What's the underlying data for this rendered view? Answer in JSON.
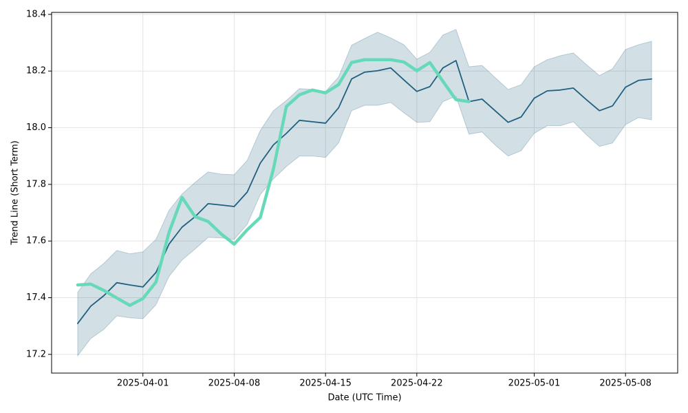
{
  "chart_data": {
    "type": "line",
    "xlabel": "Date (UTC Time)",
    "ylabel": "Trend Line (Short Term)",
    "x": [
      "2025-03-27",
      "2025-03-28",
      "2025-03-29",
      "2025-03-30",
      "2025-03-31",
      "2025-04-01",
      "2025-04-02",
      "2025-04-03",
      "2025-04-04",
      "2025-04-05",
      "2025-04-06",
      "2025-04-07",
      "2025-04-08",
      "2025-04-09",
      "2025-04-10",
      "2025-04-11",
      "2025-04-12",
      "2025-04-13",
      "2025-04-14",
      "2025-04-15",
      "2025-04-16",
      "2025-04-17",
      "2025-04-18",
      "2025-04-19",
      "2025-04-20",
      "2025-04-21",
      "2025-04-22",
      "2025-04-23",
      "2025-04-24",
      "2025-04-25",
      "2025-04-26",
      "2025-04-27",
      "2025-04-28",
      "2025-04-29",
      "2025-04-30",
      "2025-05-01",
      "2025-05-02",
      "2025-05-03",
      "2025-05-04",
      "2025-05-05",
      "2025-05-06",
      "2025-05-07",
      "2025-05-08",
      "2025-05-09",
      "2025-05-10"
    ],
    "series": [
      {
        "color": "#1f5f7f",
        "values": [
          17.309,
          17.37,
          17.407,
          17.453,
          17.445,
          17.438,
          17.489,
          17.589,
          17.649,
          17.686,
          17.732,
          17.727,
          17.722,
          17.773,
          17.875,
          17.939,
          17.98,
          18.026,
          18.021,
          18.016,
          18.07,
          18.172,
          18.196,
          18.201,
          18.211,
          18.169,
          18.128,
          18.145,
          18.211,
          18.237,
          18.092,
          18.101,
          18.06,
          18.019,
          18.038,
          18.104,
          18.13,
          18.133,
          18.14,
          18.099,
          18.06,
          18.077,
          18.143,
          18.167,
          18.172
        ],
        "upper": [
          17.419,
          17.484,
          17.521,
          17.567,
          17.555,
          17.562,
          17.606,
          17.708,
          17.766,
          17.807,
          17.844,
          17.836,
          17.834,
          17.885,
          17.99,
          18.06,
          18.096,
          18.138,
          18.135,
          18.128,
          18.179,
          18.291,
          18.315,
          18.337,
          18.317,
          18.293,
          18.242,
          18.266,
          18.327,
          18.347,
          18.215,
          18.22,
          18.177,
          18.135,
          18.152,
          18.215,
          18.24,
          18.254,
          18.264,
          18.223,
          18.184,
          18.208,
          18.276,
          18.293,
          18.305
        ],
        "lower": [
          17.195,
          17.256,
          17.288,
          17.336,
          17.329,
          17.326,
          17.375,
          17.475,
          17.533,
          17.572,
          17.613,
          17.611,
          17.606,
          17.659,
          17.764,
          17.819,
          17.863,
          17.9,
          17.9,
          17.895,
          17.946,
          18.06,
          18.079,
          18.079,
          18.089,
          18.053,
          18.019,
          18.021,
          18.092,
          18.111,
          17.977,
          17.985,
          17.939,
          17.9,
          17.919,
          17.98,
          18.007,
          18.007,
          18.021,
          17.975,
          17.934,
          17.946,
          18.011,
          18.036,
          18.028
        ]
      },
      {
        "color": "#66d9b8",
        "values": [
          17.445,
          17.448,
          17.426,
          17.399,
          17.373,
          17.397,
          17.455,
          17.63,
          17.754,
          17.686,
          17.669,
          17.625,
          17.589,
          17.64,
          17.683,
          17.853,
          18.075,
          18.116,
          18.133,
          18.123,
          18.152,
          18.23,
          18.24,
          18.24,
          18.24,
          18.232,
          18.201,
          18.23,
          18.164,
          18.099,
          18.092,
          null,
          null,
          null,
          null,
          null,
          null,
          null,
          null,
          null,
          null,
          null,
          null,
          null,
          null
        ]
      }
    ],
    "xlim": [
      "2025-03-25",
      "2025-05-12"
    ],
    "xticks": [
      "2025-04-01",
      "2025-04-08",
      "2025-04-15",
      "2025-04-22",
      "2025-05-01",
      "2025-05-08"
    ],
    "ylim": [
      17.134,
      18.407
    ],
    "yticks": [
      17.2,
      17.4,
      17.6,
      17.8,
      {
        "value": 18.0,
        "label": "18.0"
      },
      18.2,
      18.4
    ],
    "grid": true
  }
}
